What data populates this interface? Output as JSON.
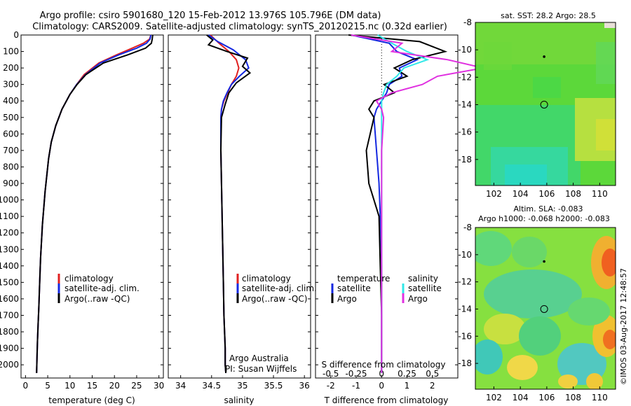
{
  "title": {
    "line1": "Argo profile: csiro 5901680_120 15-Feb-2012 13.976S 105.796E (DM data)",
    "line2": "Climatology: CARS2009. Satellite-adjusted climatology: synTS_20120215.nc (0.32d earlier)"
  },
  "colors": {
    "climatology": "#e02020",
    "satellite": "#1428e0",
    "argo": "#000000",
    "sal_satellite": "#30e8e8",
    "sal_argo": "#e030e0"
  },
  "chart_data": [
    {
      "type": "line",
      "name": "temperature",
      "xlabel": "temperature (deg C)",
      "ylabel": "",
      "xlim": [
        -1,
        31
      ],
      "ylim": [
        2080,
        0
      ],
      "xticks": [
        0,
        5,
        10,
        15,
        20,
        25,
        30
      ],
      "yticks": [
        0,
        100,
        200,
        300,
        400,
        500,
        600,
        700,
        800,
        900,
        1000,
        1100,
        1200,
        1300,
        1400,
        1500,
        1600,
        1700,
        1800,
        1900,
        2000
      ],
      "legend": [
        "climatology",
        "satellite-adj. clim.",
        "Argo(..raw -QC)"
      ],
      "series": [
        {
          "name": "climatology",
          "x": [
            28.2,
            27.9,
            26.5,
            24,
            20.5,
            16.5,
            13.2,
            11.5,
            10,
            8.2,
            6.8,
            5.8,
            5.2,
            4.8,
            4.4,
            4.1,
            3.8,
            3.6,
            3.4,
            3.2,
            3.0,
            2.85,
            2.7,
            2.6,
            2.5
          ],
          "y": [
            0,
            25,
            50,
            80,
            120,
            170,
            240,
            300,
            360,
            450,
            550,
            650,
            750,
            850,
            950,
            1050,
            1150,
            1250,
            1350,
            1500,
            1650,
            1750,
            1850,
            1950,
            2050
          ]
        },
        {
          "name": "satellite-adj. clim.",
          "x": [
            28.2,
            28,
            27.2,
            25,
            21,
            16.8,
            13.5,
            11.5,
            10,
            8.2,
            6.8,
            5.8,
            5.2,
            4.8,
            4.4,
            4.1,
            3.8,
            3.6,
            3.4,
            3.2,
            3.0,
            2.85,
            2.7,
            2.6,
            2.5
          ],
          "y": [
            0,
            25,
            50,
            80,
            120,
            170,
            240,
            300,
            360,
            450,
            550,
            650,
            750,
            850,
            950,
            1050,
            1150,
            1250,
            1350,
            1500,
            1650,
            1750,
            1850,
            1950,
            2050
          ]
        },
        {
          "name": "Argo(..raw -QC)",
          "x": [
            28.6,
            28.5,
            28.3,
            27,
            23,
            17.5,
            13.6,
            11.6,
            10,
            8.2,
            6.8,
            5.8,
            5.2,
            4.8,
            4.4,
            4.1,
            3.8,
            3.6,
            3.4,
            3.2,
            3.0,
            2.85,
            2.7,
            2.6,
            2.5
          ],
          "y": [
            0,
            25,
            50,
            80,
            120,
            170,
            240,
            300,
            360,
            450,
            550,
            650,
            750,
            850,
            950,
            1050,
            1150,
            1250,
            1350,
            1500,
            1650,
            1750,
            1850,
            1950,
            2050
          ]
        }
      ]
    },
    {
      "type": "line",
      "name": "salinity",
      "xlabel": "salinity",
      "xlim": [
        33.8,
        36.1
      ],
      "ylim": [
        2080,
        0
      ],
      "xticks": [
        34,
        34.5,
        35,
        35.5,
        36
      ],
      "legend": [
        "climatology",
        "satellite-adj. clim.",
        "Argo(..raw -QC)"
      ],
      "annotation": [
        "Argo Australia",
        "PI: Susan Wijffels"
      ],
      "series": [
        {
          "name": "climatology",
          "x": [
            34.48,
            34.62,
            34.78,
            34.9,
            34.94,
            34.9,
            34.82,
            34.76,
            34.7,
            34.66,
            34.65,
            34.65,
            34.66,
            34.67,
            34.68,
            34.69,
            34.7,
            34.71,
            34.72,
            34.72,
            34.73
          ],
          "y": [
            0,
            50,
            100,
            150,
            200,
            250,
            300,
            350,
            400,
            450,
            500,
            700,
            900,
            1100,
            1300,
            1500,
            1700,
            1800,
            1900,
            2000,
            2050
          ]
        },
        {
          "name": "satellite-adj. clim.",
          "x": [
            34.45,
            34.6,
            34.85,
            35.05,
            35.1,
            34.95,
            34.82,
            34.75,
            34.69,
            34.66,
            34.65,
            34.65,
            34.66,
            34.67,
            34.68,
            34.69,
            34.7,
            34.71,
            34.72,
            34.72,
            34.73
          ],
          "y": [
            0,
            40,
            90,
            150,
            200,
            250,
            300,
            350,
            400,
            450,
            500,
            700,
            900,
            1100,
            1300,
            1500,
            1700,
            1800,
            1900,
            2000,
            2050
          ]
        },
        {
          "name": "Argo(..raw -QC)",
          "x": [
            34.42,
            34.52,
            34.45,
            34.75,
            35.08,
            35.0,
            35.12,
            34.9,
            34.78,
            34.72,
            34.66,
            34.65,
            34.66,
            34.67,
            34.68,
            34.69,
            34.7,
            34.71,
            34.72,
            34.72,
            34.73
          ],
          "y": [
            0,
            30,
            60,
            100,
            140,
            190,
            230,
            290,
            350,
            420,
            500,
            700,
            900,
            1100,
            1300,
            1500,
            1700,
            1800,
            1900,
            2000,
            2050
          ]
        }
      ]
    },
    {
      "type": "line",
      "name": "difference",
      "xlabel": "T difference from climatology",
      "xlabel2": "S difference from climatology",
      "xlim": [
        -2.6,
        3.0
      ],
      "ylim": [
        2080,
        0
      ],
      "xticks": [
        -2,
        -1,
        0,
        1,
        2
      ],
      "sticks": [
        -0.5,
        -0.25,
        0,
        0.25,
        0.5
      ],
      "legend_t": {
        "header": "temperature",
        "items": [
          "satellite",
          "Argo"
        ]
      },
      "legend_s": {
        "header": "salinity",
        "items": [
          "satellite",
          "Argo"
        ]
      },
      "series": [
        {
          "name": "T satellite",
          "x": [
            -1.2,
            0.3,
            0.6,
            1.4,
            0.7,
            0.8,
            0.3,
            0.2,
            0.0,
            -0.2,
            -0.3,
            -0.2,
            -0.1,
            -0.05,
            0.0,
            0.0,
            0.0
          ],
          "y": [
            0,
            50,
            100,
            150,
            200,
            250,
            300,
            350,
            400,
            450,
            500,
            700,
            900,
            1100,
            1400,
            1700,
            2050
          ]
        },
        {
          "name": "T Argo",
          "x": [
            -1.3,
            1.5,
            2.5,
            1.2,
            0.5,
            1.0,
            0.1,
            0.5,
            -0.3,
            -0.5,
            -0.3,
            -0.6,
            -0.5,
            -0.1,
            -0.05,
            0.0,
            0.0
          ],
          "y": [
            0,
            40,
            100,
            150,
            200,
            250,
            300,
            350,
            400,
            450,
            500,
            700,
            900,
            1100,
            1400,
            1700,
            2050
          ]
        },
        {
          "name": "S satellite",
          "x": [
            -0.04,
            0.1,
            0.25,
            0.45,
            0.22,
            0.15,
            0.05,
            0.02,
            0.0,
            0.0,
            0.0,
            0.0,
            0.0,
            0.0,
            0.0,
            0.0,
            0.0
          ],
          "y": [
            0,
            50,
            100,
            150,
            200,
            250,
            300,
            350,
            400,
            450,
            500,
            700,
            900,
            1100,
            1400,
            1700,
            2050
          ]
        },
        {
          "name": "S Argo",
          "x": [
            -0.3,
            0.2,
            0.1,
            0.65,
            1.0,
            0.55,
            0.4,
            0.1,
            -0.05,
            0.0,
            0.02,
            0.0,
            0.0,
            0.0,
            0.0,
            0.0,
            0.0
          ],
          "y": [
            0,
            50,
            100,
            150,
            200,
            250,
            300,
            350,
            400,
            450,
            500,
            700,
            900,
            1100,
            1400,
            1700,
            2050
          ]
        }
      ]
    },
    {
      "type": "heatmap",
      "name": "sst-map",
      "title": "sat. SST: 28.2  Argo: 28.5",
      "xlim": [
        100.6,
        111.2
      ],
      "ylim": [
        -19.9,
        -8
      ],
      "xticks": [
        102,
        104,
        106,
        108,
        110
      ],
      "yticks": [
        -8,
        -10,
        -12,
        -14,
        -16,
        -18
      ],
      "markers": [
        {
          "x": 105.8,
          "y": -10.5,
          "kind": "star"
        },
        {
          "x": 105.8,
          "y": -14.0,
          "kind": "circle"
        }
      ]
    },
    {
      "type": "heatmap",
      "name": "sla-map",
      "title_lines": [
        "Altim. SLA: -0.083",
        "Argo h1000: -0.068 h2000: -0.083"
      ],
      "xlim": [
        100.6,
        111.2
      ],
      "ylim": [
        -19.9,
        -8
      ],
      "xticks": [
        102,
        104,
        106,
        108,
        110
      ],
      "yticks": [
        -8,
        -10,
        -12,
        -14,
        -16,
        -18
      ],
      "markers": [
        {
          "x": 105.8,
          "y": -10.5,
          "kind": "star"
        },
        {
          "x": 105.8,
          "y": -14.0,
          "kind": "circle"
        }
      ]
    }
  ],
  "side_text": "©IMOS 03-Aug-2017 12:48:57"
}
